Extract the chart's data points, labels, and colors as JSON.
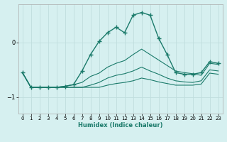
{
  "xlabel": "Humidex (Indice chaleur)",
  "bg_color": "#d6f0f0",
  "grid_color": "#c0dede",
  "line_color": "#1a7a6a",
  "x_values": [
    0,
    1,
    2,
    3,
    4,
    5,
    6,
    7,
    8,
    9,
    10,
    11,
    12,
    13,
    14,
    15,
    16,
    17,
    18,
    19,
    20,
    21,
    22,
    23
  ],
  "main_line_y": [
    -0.55,
    -0.82,
    -0.82,
    -0.82,
    -0.82,
    -0.8,
    -0.77,
    -0.52,
    -0.22,
    0.02,
    0.18,
    0.28,
    0.18,
    0.5,
    0.55,
    0.5,
    0.08,
    -0.22,
    -0.55,
    -0.58,
    -0.58,
    -0.55,
    -0.35,
    -0.38
  ],
  "line2_y": [
    -0.55,
    -0.82,
    -0.82,
    -0.82,
    -0.82,
    -0.8,
    -0.77,
    -0.73,
    -0.62,
    -0.56,
    -0.45,
    -0.38,
    -0.33,
    -0.22,
    -0.12,
    -0.22,
    -0.32,
    -0.42,
    -0.52,
    -0.55,
    -0.57,
    -0.6,
    -0.38,
    -0.4
  ],
  "line3_y": [
    -0.55,
    -0.82,
    -0.82,
    -0.82,
    -0.82,
    -0.82,
    -0.82,
    -0.82,
    -0.78,
    -0.73,
    -0.65,
    -0.6,
    -0.57,
    -0.52,
    -0.45,
    -0.52,
    -0.58,
    -0.65,
    -0.7,
    -0.72,
    -0.73,
    -0.7,
    -0.5,
    -0.52
  ],
  "line4_y": [
    -0.55,
    -0.82,
    -0.82,
    -0.82,
    -0.82,
    -0.82,
    -0.82,
    -0.82,
    -0.82,
    -0.82,
    -0.78,
    -0.75,
    -0.73,
    -0.7,
    -0.65,
    -0.68,
    -0.72,
    -0.75,
    -0.78,
    -0.78,
    -0.78,
    -0.76,
    -0.56,
    -0.58
  ],
  "ylim": [
    -1.3,
    0.7
  ],
  "yticks": [
    -1,
    0
  ],
  "xlim": [
    -0.5,
    23.5
  ],
  "xticks": [
    0,
    1,
    2,
    3,
    4,
    5,
    6,
    7,
    8,
    9,
    10,
    11,
    12,
    13,
    14,
    15,
    16,
    17,
    18,
    19,
    20,
    21,
    22,
    23
  ]
}
